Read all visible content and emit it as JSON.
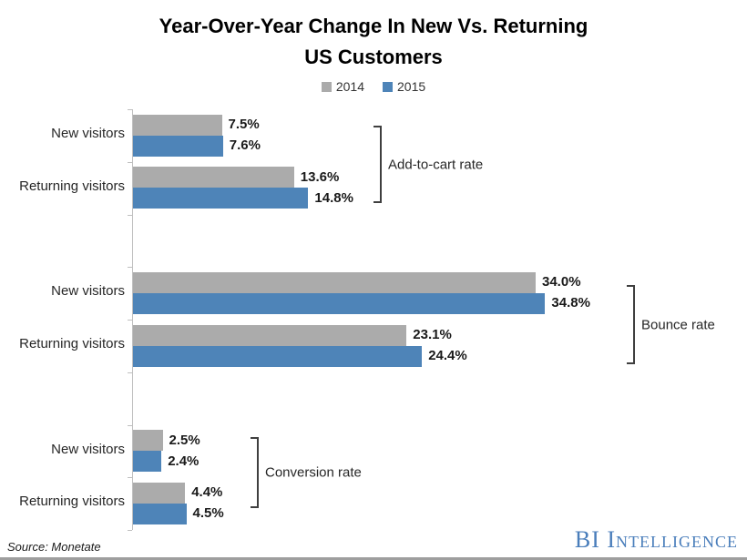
{
  "title": {
    "line1": "Year-Over-Year Change In New Vs. Returning",
    "line2": "US Customers"
  },
  "legend": {
    "items": [
      {
        "label": "2014",
        "series": "2014"
      },
      {
        "label": "2015",
        "series": "2015"
      }
    ]
  },
  "colors": {
    "bar_2014": "#ABABAB",
    "bar_2015": "#4E84B8",
    "axis": "#BFBFBF",
    "bracket": "#3F3F3F",
    "logo_blue": "#4A7EBB"
  },
  "chart_data": {
    "type": "bar",
    "orientation": "horizontal",
    "unit": "%",
    "axis_range": [
      0,
      40
    ],
    "grid": false,
    "legend_position": "top",
    "series_names": [
      "2014",
      "2015"
    ],
    "groups": [
      {
        "label": "Add-to-cart rate",
        "rows": [
          {
            "category": "New visitors",
            "values": [
              7.5,
              7.6
            ]
          },
          {
            "category": "Returning visitors",
            "values": [
              13.6,
              14.8
            ]
          }
        ]
      },
      {
        "label": "Bounce rate",
        "rows": [
          {
            "category": "New visitors",
            "values": [
              34.0,
              34.8
            ]
          },
          {
            "category": "Returning visitors",
            "values": [
              23.1,
              24.4
            ]
          }
        ]
      },
      {
        "label": "Conversion rate",
        "rows": [
          {
            "category": "New visitors",
            "values": [
              2.5,
              2.4
            ]
          },
          {
            "category": "Returning visitors",
            "values": [
              4.4,
              4.5
            ]
          }
        ]
      }
    ]
  },
  "footer": {
    "source": "Source: Monetate",
    "logo_text": "BI Intelligence"
  }
}
